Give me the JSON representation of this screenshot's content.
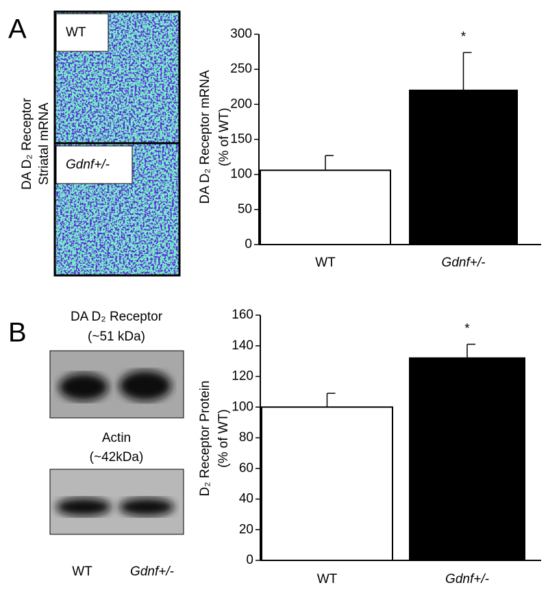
{
  "panels": {
    "a": "A",
    "b": "B"
  },
  "images": {
    "mrna_label": [
      "DA D₂ Receptor",
      "Striatal mRNA"
    ],
    "mrna_tags": [
      "WT",
      "Gdnf+/-"
    ]
  },
  "blots": {
    "receptor": [
      "DA D₂ Receptor",
      "(~51 kDa)"
    ],
    "actin": [
      "Actin",
      "(~42kDa)"
    ],
    "lanes": [
      "WT",
      "Gdnf+/-"
    ]
  },
  "chart_data": [
    {
      "type": "bar",
      "ylabel": [
        "DA D₂ Receptor mRNA",
        "(% of WT)"
      ],
      "categories": [
        "WT",
        "Gdnf+/-"
      ],
      "values": [
        106,
        220
      ],
      "errors": [
        21,
        54
      ],
      "colors": [
        "#ffffff",
        "#000000"
      ],
      "annotation": "*",
      "ylim": [
        0,
        300
      ],
      "yticks": [
        0,
        50,
        100,
        150,
        200,
        250,
        300
      ]
    },
    {
      "type": "bar",
      "ylabel": [
        "D₂ Receptor Protein",
        "(% of WT)"
      ],
      "categories": [
        "WT",
        "Gdnf+/-"
      ],
      "values": [
        100,
        132
      ],
      "errors": [
        9,
        9
      ],
      "colors": [
        "#ffffff",
        "#000000"
      ],
      "annotation": "*",
      "ylim": [
        0,
        160
      ],
      "yticks": [
        0,
        20,
        40,
        60,
        80,
        100,
        120,
        140,
        160
      ]
    }
  ]
}
